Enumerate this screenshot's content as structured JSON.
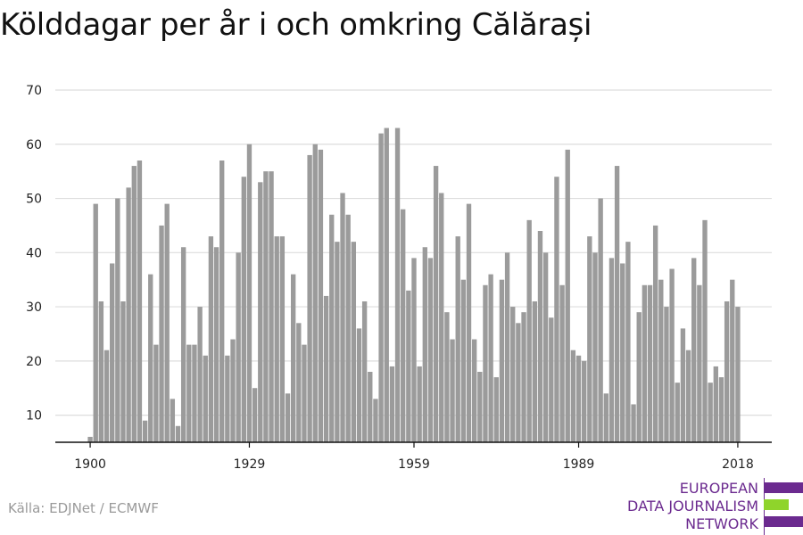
{
  "chart_data": {
    "type": "bar",
    "title": "Kölddagar per år i och omkring Călărași",
    "xlabel": "",
    "ylabel": "",
    "x_start": 1900,
    "ylim": [
      5,
      70
    ],
    "yticks": [
      10,
      20,
      30,
      40,
      50,
      60,
      70
    ],
    "xticks": [
      1900,
      1929,
      1959,
      1989,
      2018
    ],
    "grid": true,
    "bar_color": "#9b9b9b",
    "values": [
      6,
      49,
      31,
      22,
      38,
      50,
      31,
      52,
      56,
      57,
      9,
      36,
      23,
      45,
      49,
      13,
      8,
      41,
      23,
      23,
      30,
      21,
      43,
      41,
      57,
      21,
      24,
      40,
      54,
      60,
      15,
      53,
      55,
      55,
      43,
      43,
      14,
      36,
      27,
      23,
      58,
      60,
      59,
      32,
      47,
      42,
      51,
      47,
      42,
      26,
      31,
      18,
      13,
      62,
      63,
      19,
      63,
      48,
      33,
      39,
      19,
      41,
      39,
      56,
      51,
      29,
      24,
      43,
      35,
      49,
      24,
      18,
      34,
      36,
      17,
      35,
      40,
      30,
      27,
      29,
      46,
      31,
      44,
      40,
      28,
      54,
      34,
      59,
      22,
      21,
      20,
      43,
      40,
      50,
      14,
      39,
      56,
      38,
      42,
      12,
      29,
      34,
      34,
      45,
      35,
      30,
      37,
      16,
      26,
      22,
      39,
      34,
      46,
      16,
      19,
      17,
      31,
      35,
      30
    ]
  },
  "source": "Källa: EDJNet / ECMWF",
  "logo": {
    "lines": [
      "EUROPEAN",
      "DATA JOURNALISM",
      "NETWORK"
    ],
    "bar_colors": [
      "#6b2a8f",
      "#8fd42b",
      "#6b2a8f"
    ]
  }
}
